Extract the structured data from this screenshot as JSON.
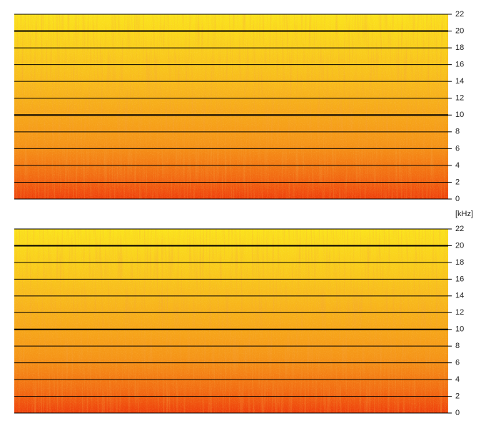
{
  "chart_data": [
    {
      "type": "spectrogram",
      "ylim": [
        0,
        22
      ],
      "yticks": [
        0,
        2,
        4,
        6,
        8,
        10,
        12,
        14,
        16,
        18,
        20,
        22
      ],
      "major_grid": [
        10,
        20
      ],
      "grid": true,
      "ylabel": "[kHz]"
    },
    {
      "type": "spectrogram",
      "ylim": [
        0,
        22
      ],
      "yticks": [
        0,
        2,
        4,
        6,
        8,
        10,
        12,
        14,
        16,
        18,
        20,
        22
      ],
      "major_grid": [
        10,
        20
      ],
      "grid": true
    }
  ]
}
